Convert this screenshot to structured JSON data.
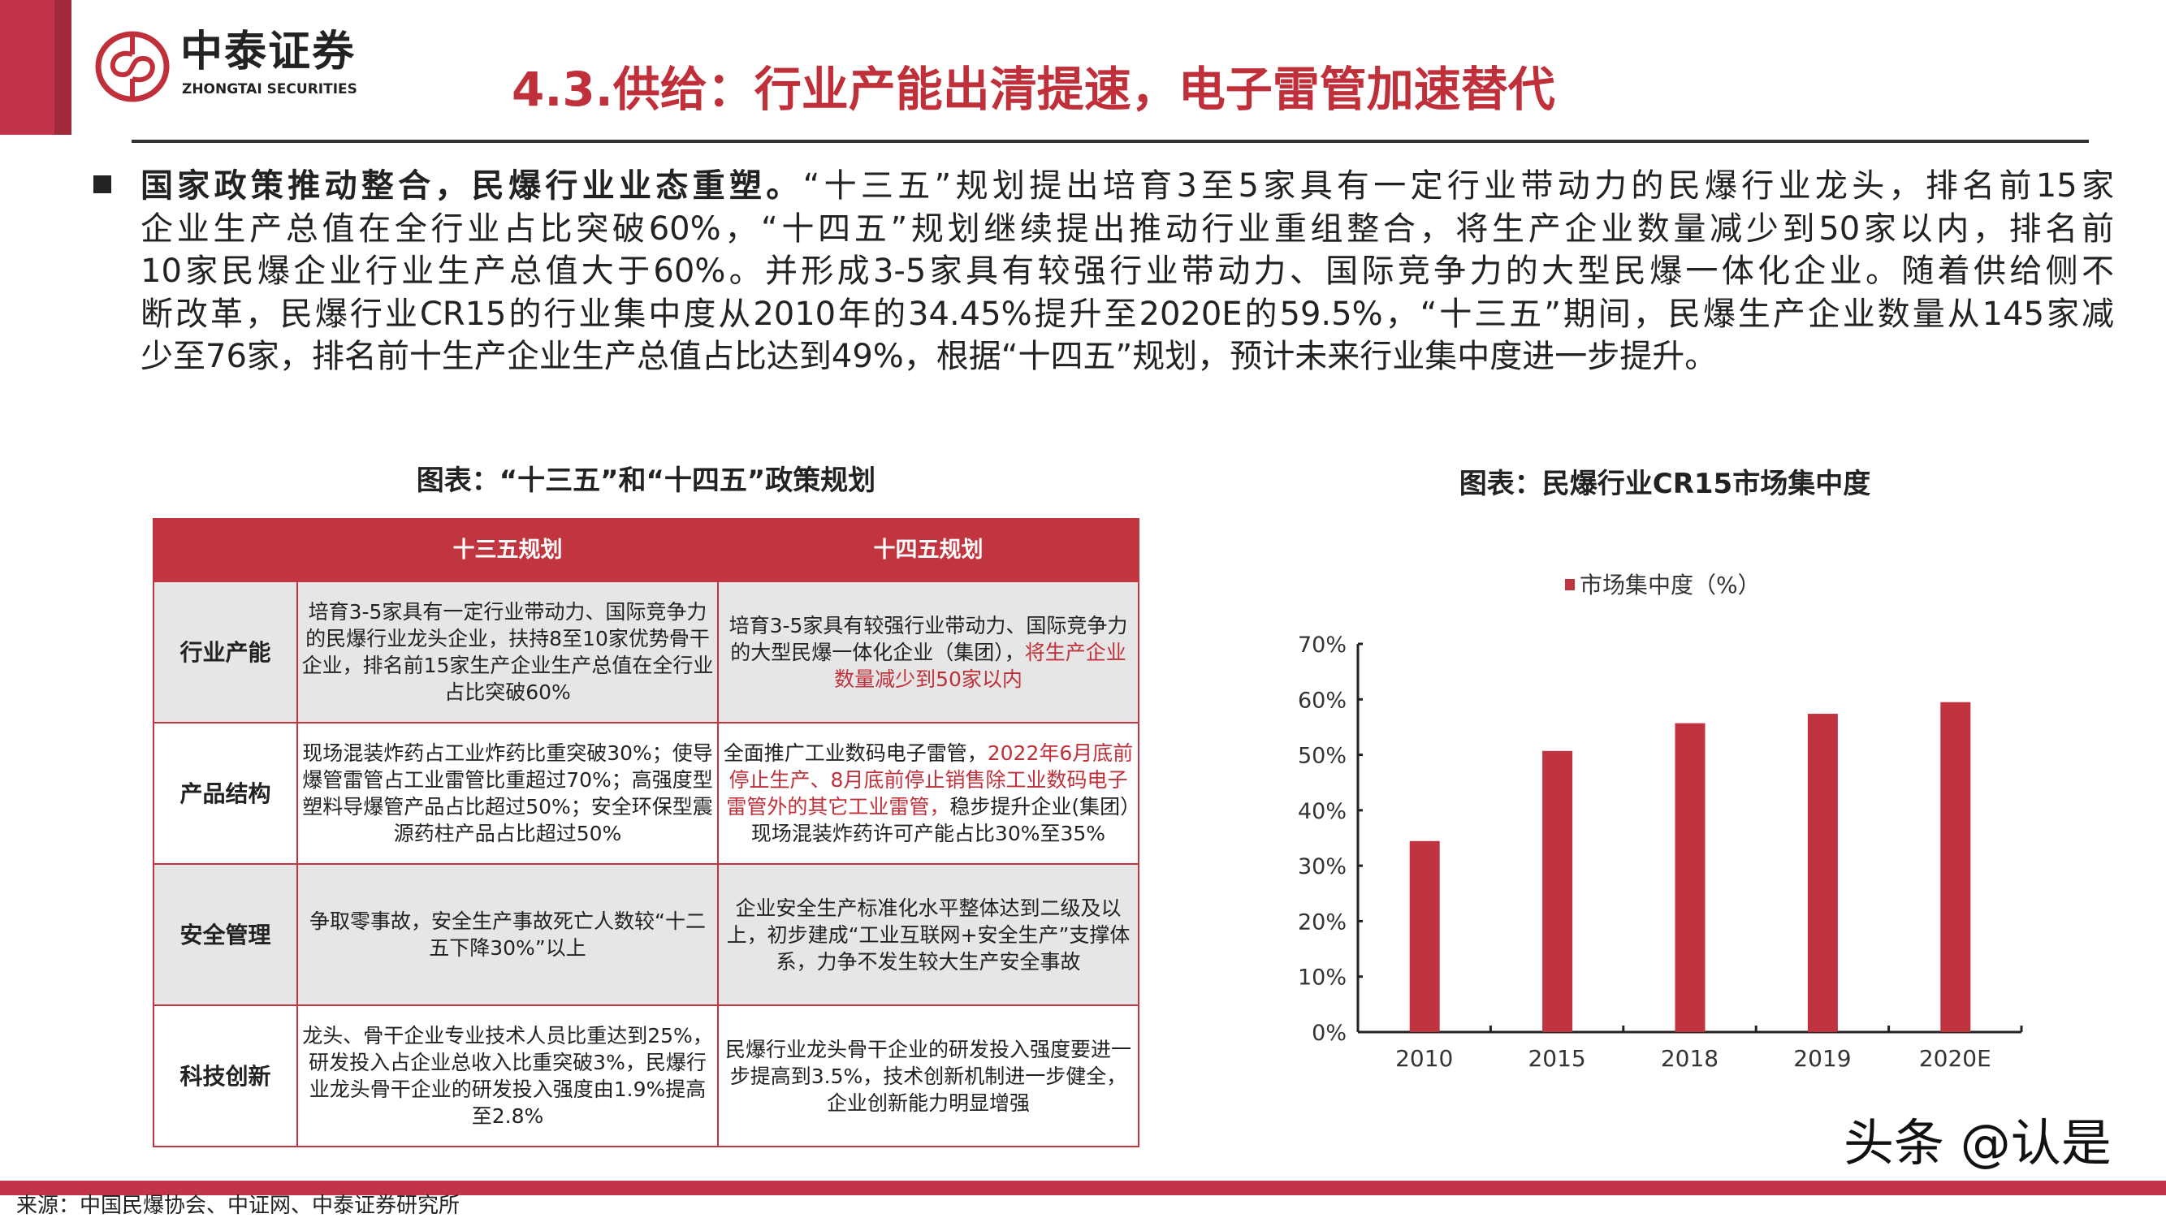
{
  "header": {
    "logo_cn": "中泰证券",
    "logo_en": "ZHONGTAI SECURITIES",
    "title": "4.3.供给：行业产能出清提速，电子雷管加速替代",
    "accent": "#c0303a"
  },
  "body": {
    "lead": "国家政策推动整合，民爆行业业态重塑。",
    "lines": [
      "“十三五”规划提出培育3至5家具有一定行业带动力的民爆行业龙头，排名前15家",
      "企业生产总值在全行业占比突破60%，“十四五”规划继续提出推动行业重组整合，将生产企业数量减少到50家以内，排名前",
      "10家民爆企业行业生产总值大于60%。并形成3-5家具有较强行业带动力、国际竞争力的大型民爆一体化企业。随着供给侧不",
      "断改革，民爆行业CR15的行业集中度从2010年的34.45%提升至2020E的59.5%，“十三五”期间，民爆生产企业数量从145家减",
      "少至76家，排名前十生产企业生产总值占比达到49%，根据“十四五”规划，预计未来行业集中度进一步提升。"
    ]
  },
  "table": {
    "title": "图表：“十三五”和“十四五”政策规划",
    "headers": [
      "",
      "十三五规划",
      "十四五规划"
    ],
    "rows": [
      {
        "key": "行业产能",
        "c1": "培育3-5家具有一定行业带动力、国际竞争力的民爆行业龙头企业，扶持8至10家优势骨干企业，排名前15家生产企业生产总值在全行业占比突破60%",
        "c2a": "培育3-5家具有较强行业带动力、国际竞争力的大型民爆一体化企业（集团），",
        "c2b": "将生产企业数量减少到50家以内",
        "c2c": ""
      },
      {
        "key": "产品结构",
        "c1": "现场混装炸药占工业炸药比重突破30%；使导爆管雷管占工业雷管比重超过70%；高强度型塑料导爆管产品占比超过50%；安全环保型震源药柱产品占比超过50%",
        "c2a": "全面推广工业数码电子雷管，",
        "c2b": "2022年6月底前停止生产、8月底前停止销售除工业数码电子雷管外的其它工业雷管，",
        "c2c": "稳步提升企业(集团）现场混装炸药许可产能占比30%至35%"
      },
      {
        "key": "安全管理",
        "c1": "争取零事故，安全生产事故死亡人数较“十二五下降30%”以上",
        "c2a": "企业安全生产标准化水平整体达到二级及以上，初步建成“工业互联网+安全生产”支撑体系，力争不发生较大生产安全事故",
        "c2b": "",
        "c2c": ""
      },
      {
        "key": "科技创新",
        "c1": "龙头、骨干企业专业技术人员比重达到25%，研发投入占企业总收入比重突破3%，民爆行业龙头骨干企业的研发投入强度由1.9%提高至2.8%",
        "c2a": "民爆行业龙头骨干企业的研发投入强度要进一步提高到3.5%，技术创新机制进一步健全，企业创新能力明显增强",
        "c2b": "",
        "c2c": ""
      }
    ]
  },
  "chart_data": {
    "type": "bar",
    "title": "图表：民爆行业CR15市场集中度",
    "categories": [
      "2010",
      "2015",
      "2018",
      "2019",
      "2020E"
    ],
    "series": [
      {
        "name": "市场集中度（%）",
        "values": [
          34.45,
          50.7,
          55.7,
          57.4,
          59.5
        ],
        "color": "#c0343f"
      }
    ],
    "ylim": [
      0,
      70
    ],
    "yticks": [
      "0%",
      "10%",
      "20%",
      "30%",
      "40%",
      "50%",
      "60%",
      "70%"
    ],
    "legend": "top",
    "grid": false
  },
  "footer": {
    "source": "来源：中国民爆协会、中证网、中泰证券研究所",
    "watermark": "头条 @认是"
  }
}
